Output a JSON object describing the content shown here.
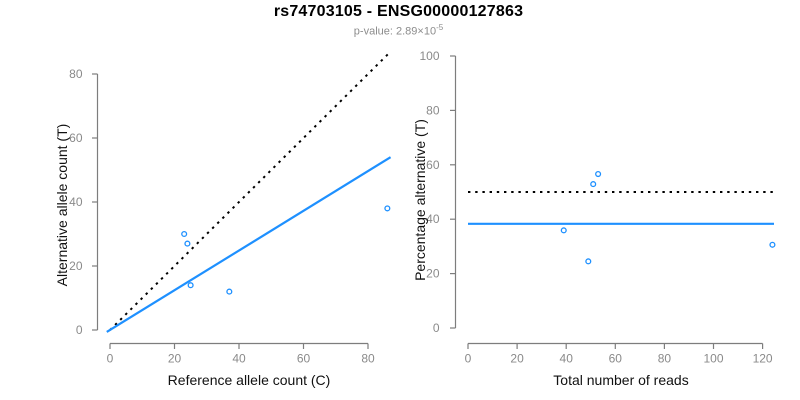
{
  "header": {
    "title": "rs74703105 - ENSG00000127863",
    "subtitle_text": "p-value: 2.89×10",
    "subtitle_exponent": "-5"
  },
  "colors": {
    "accent_blue": "#1E90FF",
    "dotted_black": "#000000",
    "axis_gray": "#7d7d7d",
    "tick_label_gray": "#8a8a8a",
    "axis_title_color": "#111111"
  },
  "chart_data": [
    {
      "type": "scatter",
      "name": "allele-counts-plot",
      "xlabel": "Reference allele count (C)",
      "ylabel": "Alternative allele count (T)",
      "xlim": [
        0,
        86
      ],
      "ylim": [
        0,
        80
      ],
      "xticks": [
        0,
        20,
        40,
        60,
        80
      ],
      "yticks": [
        0,
        20,
        40,
        60,
        80
      ],
      "grid": false,
      "legend": "none",
      "points": [
        [
          23,
          30
        ],
        [
          24,
          27
        ],
        [
          25,
          14
        ],
        [
          37,
          12
        ],
        [
          86,
          38
        ]
      ],
      "lines": [
        {
          "name": "identity-line",
          "style": "dotted",
          "color": "#000000",
          "from": [
            0,
            0
          ],
          "to": [
            86.5,
            86.5
          ]
        },
        {
          "name": "regression-line",
          "style": "solid",
          "color": "#1E90FF",
          "from": [
            -1,
            -0.6
          ],
          "to": [
            87,
            54
          ]
        }
      ]
    },
    {
      "type": "scatter",
      "name": "percentage-alternative-plot",
      "xlabel": "Total number of reads",
      "ylabel": "Percentage alternative (T)",
      "xlim": [
        0,
        124
      ],
      "ylim": [
        0,
        100
      ],
      "xticks": [
        0,
        20,
        40,
        60,
        80,
        100,
        120
      ],
      "yticks": [
        0,
        20,
        40,
        60,
        80,
        100
      ],
      "grid": false,
      "legend": "none",
      "points": [
        [
          39,
          35.9
        ],
        [
          49,
          24.5
        ],
        [
          51,
          52.9
        ],
        [
          53,
          56.6
        ],
        [
          124,
          30.6
        ]
      ],
      "lines": [
        {
          "name": "expected-50-percent-line",
          "style": "dotted",
          "color": "#000000",
          "y": 50
        },
        {
          "name": "observed-percentage-line",
          "style": "solid",
          "color": "#1E90FF",
          "y": 38.3
        }
      ]
    }
  ]
}
